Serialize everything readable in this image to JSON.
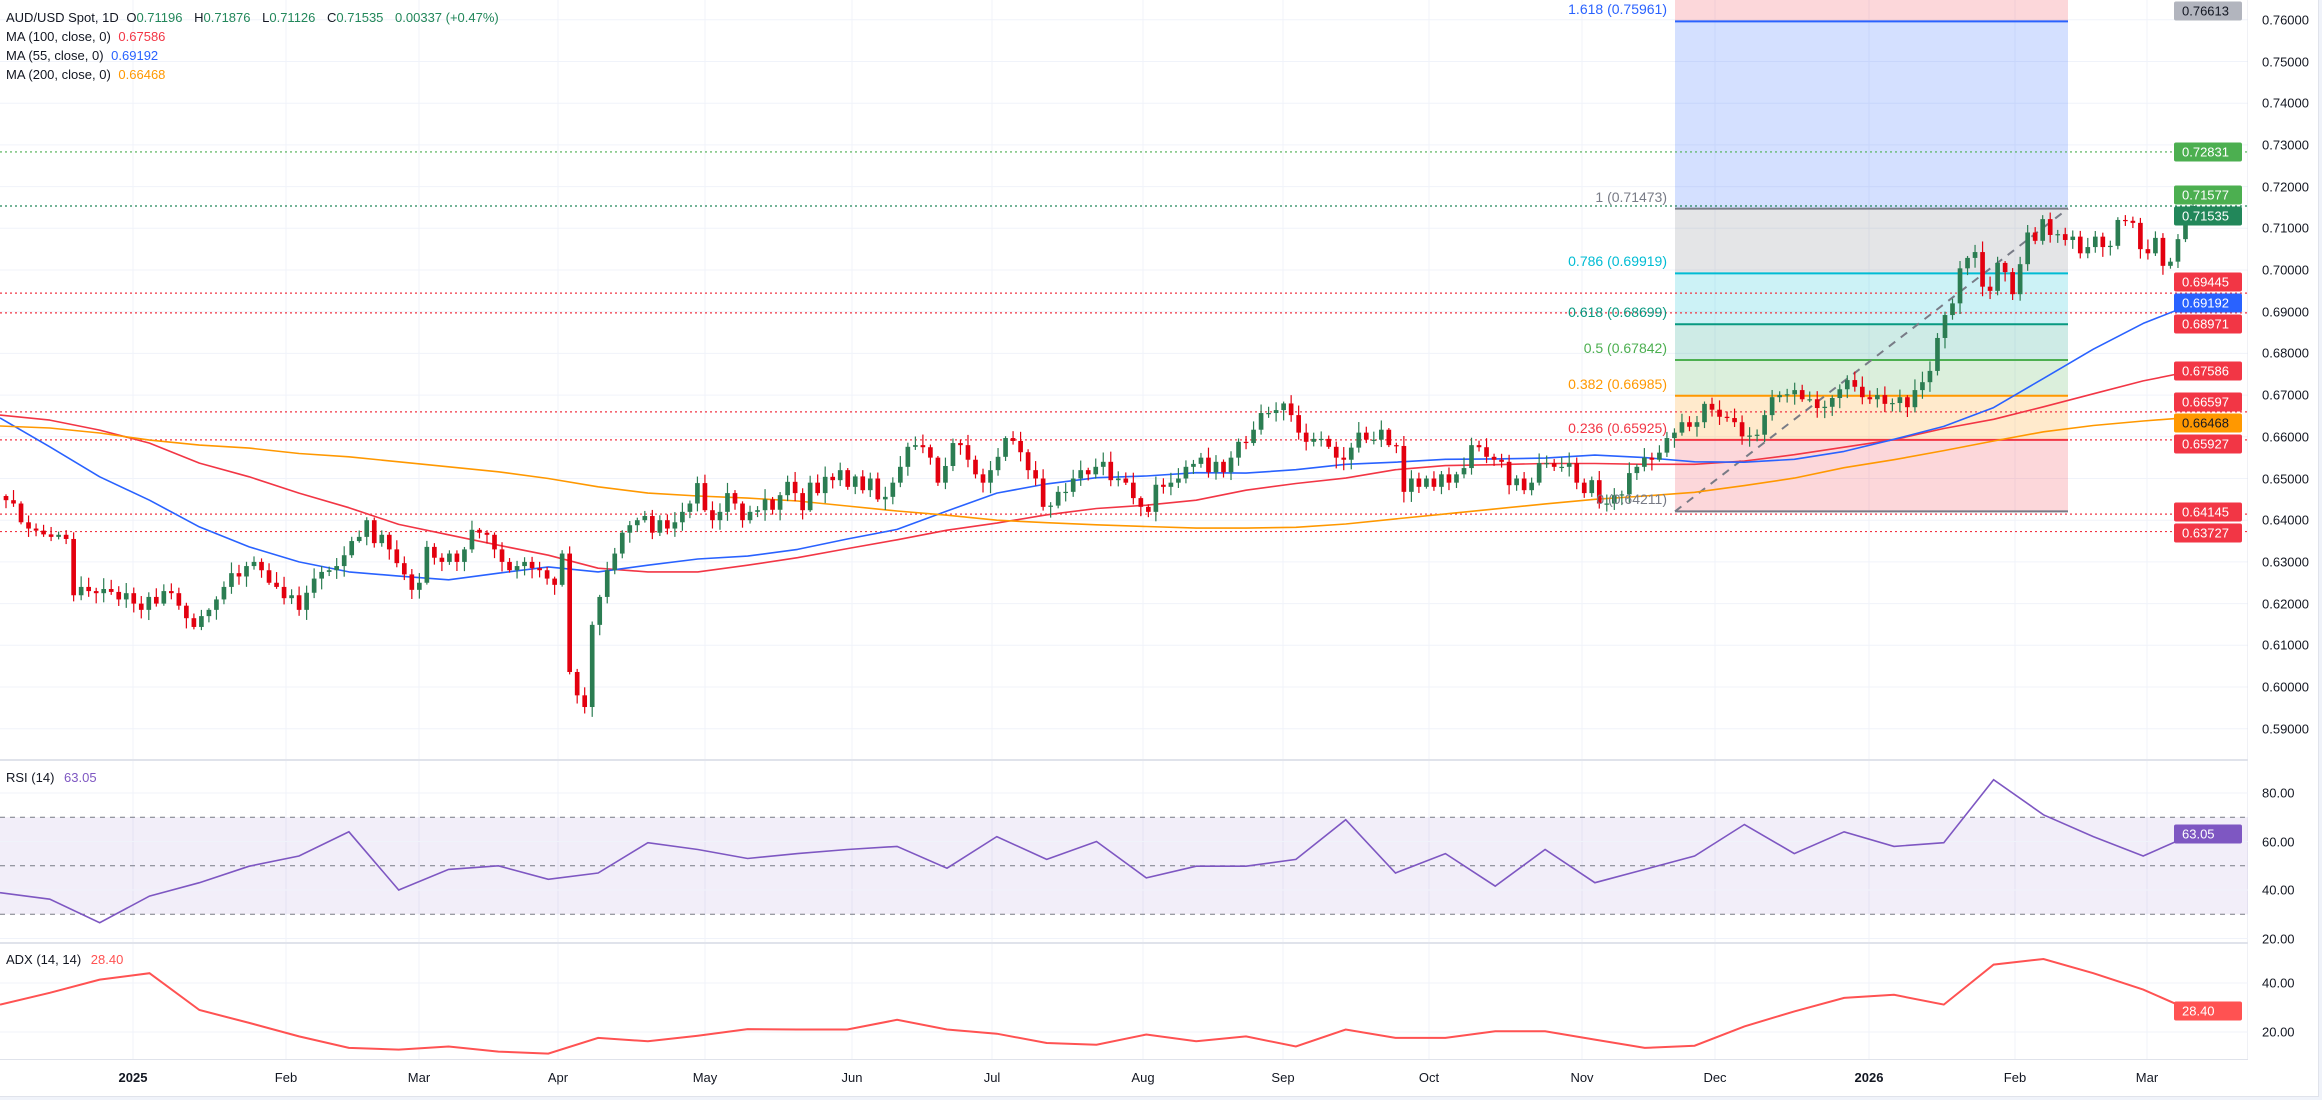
{
  "legend": {
    "symbol": "AUD/USD Spot, 1D",
    "o_label": "O",
    "open": "0.71196",
    "h_label": "H",
    "high": "0.71876",
    "l_label": "L",
    "low": "0.71126",
    "c_label": "C",
    "close": "0.71535",
    "change": "0.00337 (+0.47%)",
    "mas": [
      {
        "label": "MA (100, close, 0)",
        "value": "0.67586",
        "color": "#f23645"
      },
      {
        "label": "MA (55, close, 0)",
        "value": "0.69192",
        "color": "#2962ff"
      },
      {
        "label": "MA (200, close, 0)",
        "value": "0.66468",
        "color": "#ff9800"
      }
    ]
  },
  "chart_data": {
    "type": "candlestick",
    "symbol": "AUD/USD Spot",
    "interval": "1D",
    "colors": {
      "up": "#2b7d52",
      "down": "#e3000f",
      "grid": "#f0f3fa"
    },
    "time_labels": [
      "2025",
      "Feb",
      "Mar",
      "Apr",
      "May",
      "Jun",
      "Jul",
      "Aug",
      "Sep",
      "Oct",
      "Nov",
      "Dec",
      "2026",
      "Feb",
      "Mar"
    ],
    "price_axis": {
      "range": [
        0.585,
        0.7665
      ],
      "ticks": [
        "0.59000",
        "0.60000",
        "0.61000",
        "0.62000",
        "0.63000",
        "0.64000",
        "0.65000",
        "0.66000",
        "0.67000",
        "0.68000",
        "0.69000",
        "0.70000",
        "0.71000",
        "0.72000",
        "0.73000",
        "0.74000",
        "0.75000",
        "0.76000"
      ]
    },
    "closes": [
      0.6448,
      0.644,
      0.6395,
      0.638,
      0.6375,
      0.6366,
      0.636,
      0.6365,
      0.6355,
      0.622,
      0.624,
      0.623,
      0.6225,
      0.6235,
      0.6228,
      0.621,
      0.6225,
      0.62,
      0.6185,
      0.6216,
      0.62,
      0.623,
      0.6225,
      0.6195,
      0.6165,
      0.6144,
      0.617,
      0.6185,
      0.621,
      0.624,
      0.6273,
      0.6265,
      0.629,
      0.63,
      0.628,
      0.625,
      0.624,
      0.6213,
      0.622,
      0.6185,
      0.6226,
      0.626,
      0.6276,
      0.628,
      0.629,
      0.6316,
      0.635,
      0.636,
      0.64,
      0.6345,
      0.6365,
      0.633,
      0.6297,
      0.627,
      0.6233,
      0.625,
      0.6336,
      0.631,
      0.63,
      0.632,
      0.63,
      0.633,
      0.6377,
      0.637,
      0.6365,
      0.633,
      0.63,
      0.628,
      0.629,
      0.63,
      0.6285,
      0.628,
      0.626,
      0.6245,
      0.632,
      0.6036,
      0.598,
      0.5952,
      0.6149,
      0.6216,
      0.628,
      0.632,
      0.637,
      0.6388,
      0.64,
      0.641,
      0.637,
      0.64,
      0.638,
      0.6395,
      0.642,
      0.644,
      0.6489,
      0.6424,
      0.64,
      0.642,
      0.6465,
      0.644,
      0.64,
      0.642,
      0.6424,
      0.645,
      0.6425,
      0.646,
      0.6492,
      0.6465,
      0.6424,
      0.649,
      0.6465,
      0.6504,
      0.6496,
      0.652,
      0.648,
      0.6505,
      0.6472,
      0.65,
      0.645,
      0.6456,
      0.649,
      0.6528,
      0.6576,
      0.658,
      0.6575,
      0.655,
      0.649,
      0.653,
      0.6585,
      0.658,
      0.6545,
      0.651,
      0.649,
      0.652,
      0.6552,
      0.6597,
      0.659,
      0.6563,
      0.652,
      0.65,
      0.6432,
      0.6435,
      0.6468,
      0.6468,
      0.65,
      0.652,
      0.651,
      0.6528,
      0.654,
      0.6496,
      0.65,
      0.649,
      0.6453,
      0.6432,
      0.642,
      0.6485,
      0.648,
      0.649,
      0.65,
      0.6528,
      0.6535,
      0.655,
      0.6515,
      0.654,
      0.6515,
      0.655,
      0.6588,
      0.6585,
      0.6617,
      0.6657,
      0.6657,
      0.6664,
      0.668,
      0.6652,
      0.661,
      0.6588,
      0.6595,
      0.6595,
      0.6576,
      0.655,
      0.6545,
      0.6574,
      0.661,
      0.6593,
      0.6593,
      0.6617,
      0.658,
      0.6578,
      0.6468,
      0.65,
      0.648,
      0.65,
      0.648,
      0.651,
      0.649,
      0.651,
      0.6525,
      0.658,
      0.6575,
      0.6552,
      0.6545,
      0.654,
      0.6484,
      0.65,
      0.6472,
      0.649,
      0.6537,
      0.6537,
      0.6528,
      0.6528,
      0.6537,
      0.649,
      0.6465,
      0.6496,
      0.644,
      0.644,
      0.646,
      0.6462,
      0.6513,
      0.6528,
      0.655,
      0.6545,
      0.6562,
      0.6597,
      0.661,
      0.6635,
      0.6624,
      0.6635,
      0.6679,
      0.6665,
      0.6648,
      0.6645,
      0.6635,
      0.6601,
      0.6603,
      0.6605,
      0.6652,
      0.6695,
      0.67,
      0.6702,
      0.6712,
      0.669,
      0.669,
      0.6669,
      0.6672,
      0.6693,
      0.6714,
      0.6736,
      0.672,
      0.6695,
      0.669,
      0.67,
      0.6679,
      0.6681,
      0.6695,
      0.6671,
      0.6712,
      0.6731,
      0.6758,
      0.6837,
      0.6892,
      0.692,
      0.7004,
      0.7029,
      0.7043,
      0.696,
      0.695,
      0.7017,
      0.6995,
      0.6942,
      0.7014,
      0.709,
      0.707,
      0.7122,
      0.7084,
      0.7086,
      0.7072,
      0.708,
      0.704,
      0.7055,
      0.708,
      0.7055,
      0.7058,
      0.712,
      0.7118,
      0.7113,
      0.705,
      0.704,
      0.7077,
      0.701,
      0.702,
      0.7074,
      0.7115,
      0.71535
    ],
    "last_candle": {
      "open": 0.71196,
      "high": 0.71876,
      "low": 0.71126,
      "close": 0.71535
    },
    "moving_averages": [
      {
        "name": "MA (100, close, 0)",
        "color": "#f23645",
        "values": [
          0.6652,
          0.664,
          0.6616,
          0.6585,
          0.6537,
          0.6504,
          0.6465,
          0.643,
          0.639,
          0.6365,
          0.634,
          0.6316,
          0.6285,
          0.6276,
          0.6276,
          0.6292,
          0.631,
          0.6332,
          0.6353,
          0.6376,
          0.6393,
          0.6413,
          0.6428,
          0.6436,
          0.6448,
          0.6472,
          0.6488,
          0.6501,
          0.6521,
          0.6531,
          0.6533,
          0.6536,
          0.6536,
          0.6534,
          0.6534,
          0.6542,
          0.6557,
          0.6575,
          0.6593,
          0.662,
          0.6642,
          0.6672,
          0.6703,
          0.6734,
          0.6758
        ]
      },
      {
        "name": "MA (55, close, 0)",
        "color": "#2962ff",
        "values": [
          0.6645,
          0.6576,
          0.6504,
          0.6448,
          0.6384,
          0.6336,
          0.63,
          0.6276,
          0.6266,
          0.6257,
          0.6273,
          0.6288,
          0.6276,
          0.6292,
          0.6307,
          0.6314,
          0.633,
          0.6355,
          0.6378,
          0.6422,
          0.6465,
          0.6487,
          0.6502,
          0.6506,
          0.6514,
          0.6513,
          0.6521,
          0.6534,
          0.6539,
          0.6546,
          0.6547,
          0.6549,
          0.6556,
          0.655,
          0.654,
          0.6539,
          0.6546,
          0.6565,
          0.6594,
          0.6625,
          0.667,
          0.674,
          0.681,
          0.6872,
          0.6919
        ]
      },
      {
        "name": "MA (200, close, 0)",
        "color": "#ff9800",
        "values": [
          0.6626,
          0.6621,
          0.6609,
          0.6592,
          0.658,
          0.6573,
          0.656,
          0.6552,
          0.654,
          0.6528,
          0.6516,
          0.65,
          0.648,
          0.6465,
          0.6458,
          0.6453,
          0.6446,
          0.6434,
          0.6422,
          0.6412,
          0.64,
          0.6394,
          0.6389,
          0.6385,
          0.6381,
          0.6381,
          0.6383,
          0.6391,
          0.6403,
          0.6415,
          0.6427,
          0.6439,
          0.645,
          0.6458,
          0.6467,
          0.6483,
          0.6501,
          0.6526,
          0.6545,
          0.6567,
          0.659,
          0.6612,
          0.6627,
          0.6638,
          0.6647
        ]
      }
    ],
    "fibonacci": {
      "levels": [
        {
          "ratio": 1.618,
          "price": 0.75961,
          "label": "1.618 (0.75961)",
          "color": "#2962ff"
        },
        {
          "ratio": 1,
          "price": 0.71473,
          "label": "1 (0.71473)",
          "color": "#787b86"
        },
        {
          "ratio": 0.786,
          "price": 0.69919,
          "label": "0.786 (0.69919)",
          "color": "#00bcd4"
        },
        {
          "ratio": 0.618,
          "price": 0.68699,
          "label": "0.618 (0.68699)",
          "color": "#089981"
        },
        {
          "ratio": 0.5,
          "price": 0.67842,
          "label": "0.5 (0.67842)",
          "color": "#4caf50"
        },
        {
          "ratio": 0.382,
          "price": 0.66985,
          "label": "0.382 (0.66985)",
          "color": "#ff9800"
        },
        {
          "ratio": 0.236,
          "price": 0.65925,
          "label": "0.236 (0.65925)",
          "color": "#f23645"
        },
        {
          "ratio": 0,
          "price": 0.64211,
          "label": "0 (0.64211)",
          "color": "#787b86"
        }
      ],
      "upper_zone_color": "#f23645",
      "trend_line_color": "#787b86"
    },
    "horizontal_lines": [
      {
        "price": 0.72831,
        "color": "#4caf50"
      },
      {
        "price": 0.71535,
        "color": "#22875a"
      },
      {
        "price": 0.69445,
        "color": "#f23645"
      },
      {
        "price": 0.68971,
        "color": "#f23645"
      },
      {
        "price": 0.66597,
        "color": "#f23645"
      },
      {
        "price": 0.65927,
        "color": "#f23645"
      },
      {
        "price": 0.64145,
        "color": "#f23645"
      },
      {
        "price": 0.63727,
        "color": "#f23645"
      }
    ],
    "price_badges": [
      {
        "text": "0.76613",
        "price": 0.76613,
        "bg": "#b2b5be",
        "fg": "#131722"
      },
      {
        "text": "0.72831",
        "price": 0.72831,
        "bg": "#4caf50",
        "fg": "#ffffff"
      },
      {
        "text": "0.71577",
        "price": 0.71577,
        "bg": "#4caf50",
        "fg": "#ffffff"
      },
      {
        "text": "0.71535",
        "price": 0.71535,
        "bg": "#22875a",
        "fg": "#ffffff"
      },
      {
        "text": "0.69445",
        "price": 0.69445,
        "bg": "#f23645",
        "fg": "#ffffff"
      },
      {
        "text": "0.69192",
        "price": 0.69192,
        "bg": "#2962ff",
        "fg": "#ffffff"
      },
      {
        "text": "0.68971",
        "price": 0.68971,
        "bg": "#f23645",
        "fg": "#ffffff"
      },
      {
        "text": "0.67586",
        "price": 0.67586,
        "bg": "#f23645",
        "fg": "#ffffff"
      },
      {
        "text": "0.66597",
        "price": 0.66597,
        "bg": "#f23645",
        "fg": "#ffffff"
      },
      {
        "text": "0.66468",
        "price": 0.66468,
        "bg": "#ff9800",
        "fg": "#131722"
      },
      {
        "text": "0.65927",
        "price": 0.65927,
        "bg": "#f23645",
        "fg": "#ffffff"
      },
      {
        "text": "0.64145",
        "price": 0.64145,
        "bg": "#f23645",
        "fg": "#ffffff"
      },
      {
        "text": "0.63727",
        "price": 0.63727,
        "bg": "#f23645",
        "fg": "#ffffff"
      }
    ],
    "rsi": {
      "label": "RSI (14)",
      "value": "63.05",
      "color": "#7e57c2",
      "bands": [
        70,
        50,
        30
      ],
      "ticks": [
        "80.00",
        "60.00",
        "40.00",
        "20.00"
      ],
      "values": [
        38.9,
        36.2,
        26.5,
        37.5,
        43,
        49.8,
        54,
        64,
        40,
        48.5,
        50,
        44.4,
        47,
        59.5,
        56.7,
        53,
        55,
        56.7,
        58,
        49,
        62,
        52.6,
        60,
        45,
        49.8,
        49.8,
        52.6,
        69,
        47,
        55,
        41.6,
        56.7,
        43,
        48.5,
        54,
        67,
        55,
        64,
        58,
        59.5,
        85.5,
        71,
        62,
        54,
        63.05
      ]
    },
    "adx": {
      "label": "ADX (14, 14)",
      "value": "28.40",
      "color": "#ff5252",
      "ticks": [
        "40.00",
        "20.00"
      ],
      "values": [
        31.2,
        36,
        41.4,
        44,
        29,
        23.7,
        18.2,
        13.5,
        12.8,
        14.1,
        12,
        11.2,
        17.6,
        16.2,
        18.5,
        21.2,
        21,
        21,
        25,
        21,
        19.3,
        15.5,
        14.8,
        19,
        16.2,
        18.2,
        14.1,
        21,
        17.6,
        17.6,
        20.3,
        20.3,
        16.9,
        13.5,
        14.4,
        22.3,
        28.4,
        33.9,
        35.2,
        31.2,
        47.5,
        49.8,
        44,
        37.3,
        28.4
      ]
    }
  }
}
